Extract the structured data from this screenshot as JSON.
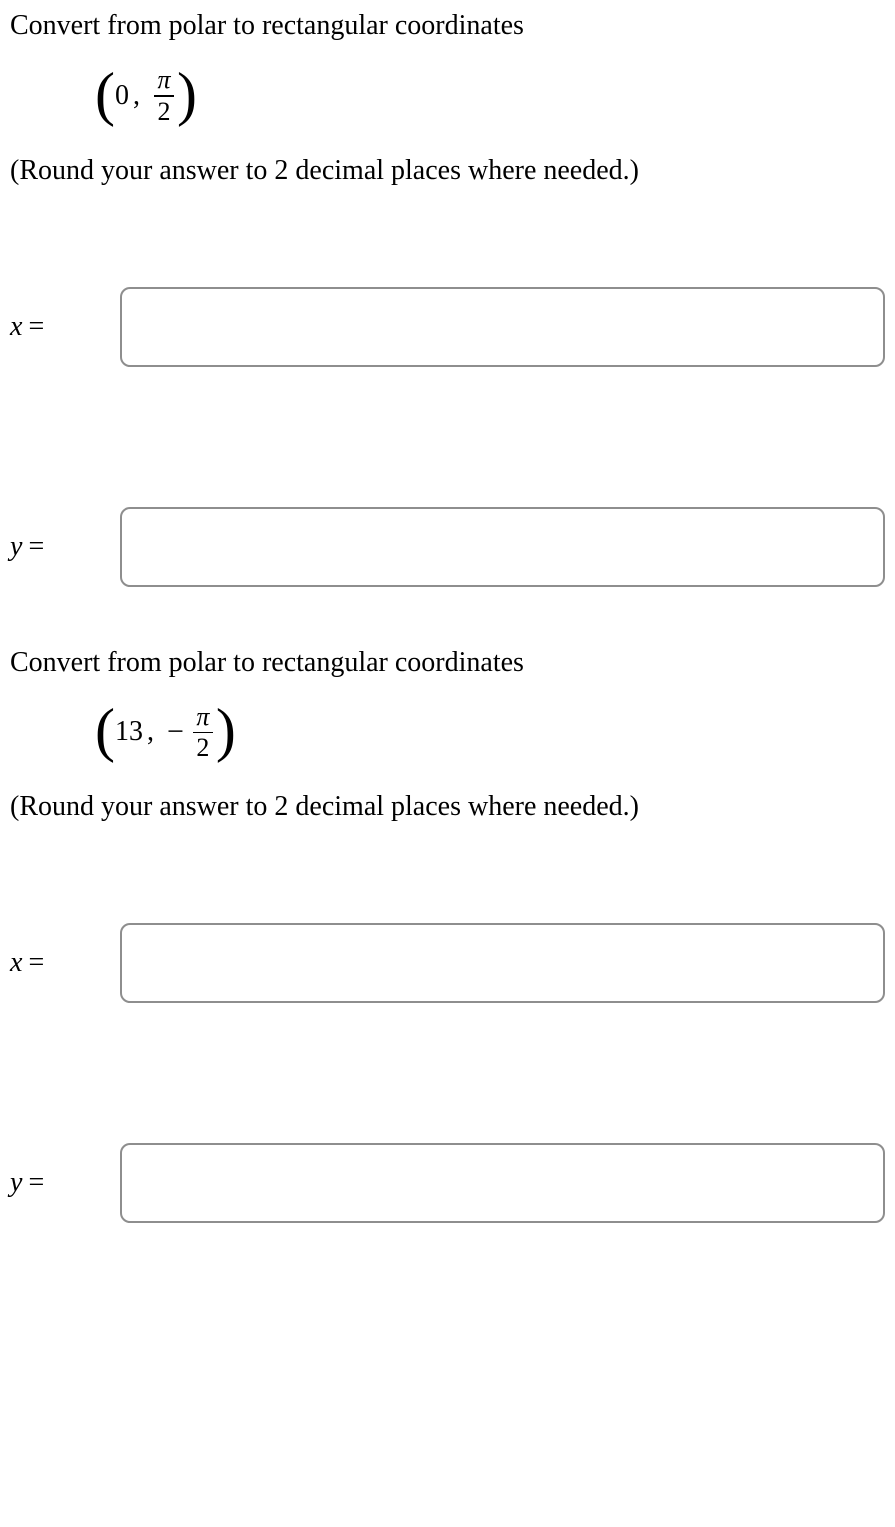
{
  "styling": {
    "font_family": "Times New Roman",
    "body_fontsize": 28,
    "formula_fontsize": 30,
    "fraction_fontsize": 26,
    "paren_fontsize": 60,
    "text_color": "#000000",
    "background_color": "#ffffff",
    "input_border_color": "#8e8e8e",
    "input_border_radius": 10,
    "input_height": 80
  },
  "problems": [
    {
      "prompt": "Convert from polar to rectangular coordinates",
      "polar": {
        "r": "0",
        "theta_sign": "",
        "theta_num": "π",
        "theta_den": "2"
      },
      "hint": "(Round your answer to 2 decimal places where needed.)",
      "answers": [
        {
          "label": "x",
          "eq": "=",
          "value": ""
        },
        {
          "label": "y",
          "eq": "=",
          "value": ""
        }
      ]
    },
    {
      "prompt": "Convert from polar to rectangular coordinates",
      "polar": {
        "r": "13",
        "theta_sign": "−",
        "theta_num": "π",
        "theta_den": "2"
      },
      "hint": "(Round your answer to 2 decimal places where needed.)",
      "answers": [
        {
          "label": "x",
          "eq": "=",
          "value": ""
        },
        {
          "label": "y",
          "eq": "=",
          "value": ""
        }
      ]
    }
  ]
}
